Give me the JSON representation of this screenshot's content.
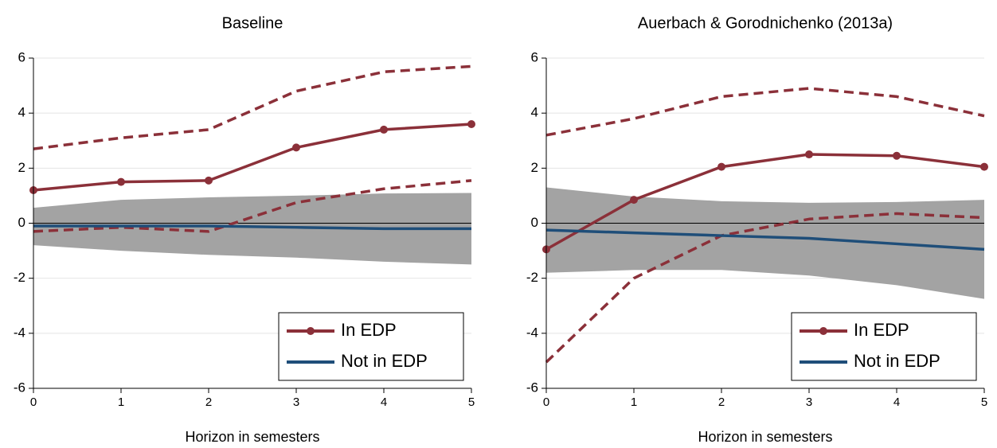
{
  "chart_data": [
    {
      "type": "line",
      "title": "Baseline",
      "xlabel": "Horizon in semesters",
      "x": [
        0,
        1,
        2,
        3,
        4,
        5
      ],
      "xlim": [
        0,
        5
      ],
      "xticks": [
        0,
        1,
        2,
        3,
        4,
        5
      ],
      "ylim": [
        -6,
        6
      ],
      "yticks": [
        -6,
        -4,
        -2,
        0,
        2,
        4,
        6
      ],
      "grid": true,
      "hline": 0,
      "legend": "lower right",
      "series": [
        {
          "name": "In EDP",
          "color": "#8b3039",
          "markers": true,
          "values": [
            1.2,
            1.5,
            1.55,
            2.75,
            3.4,
            3.6
          ],
          "upper": [
            2.7,
            3.1,
            3.4,
            4.8,
            5.5,
            5.7
          ],
          "lower": [
            -0.3,
            -0.15,
            -0.3,
            0.75,
            1.25,
            1.55
          ],
          "band_style": "dashed"
        },
        {
          "name": "Not in EDP",
          "color": "#1f4e79",
          "markers": false,
          "values": [
            -0.1,
            -0.1,
            -0.1,
            -0.15,
            -0.2,
            -0.2
          ],
          "upper": [
            0.56,
            0.85,
            0.94,
            1.0,
            1.08,
            1.1
          ],
          "lower": [
            -0.8,
            -1.0,
            -1.15,
            -1.25,
            -1.4,
            -1.5
          ],
          "band_style": "shaded",
          "band_color": "#a3a3a3"
        }
      ]
    },
    {
      "type": "line",
      "title": "Auerbach & Gorodnichenko (2013a)",
      "xlabel": "Horizon in semesters",
      "x": [
        0,
        1,
        2,
        3,
        4,
        5
      ],
      "xlim": [
        0,
        5
      ],
      "xticks": [
        0,
        1,
        2,
        3,
        4,
        5
      ],
      "ylim": [
        -6,
        6
      ],
      "yticks": [
        -6,
        -4,
        -2,
        0,
        2,
        4,
        6
      ],
      "grid": true,
      "hline": 0,
      "legend": "lower right",
      "series": [
        {
          "name": "In EDP",
          "color": "#8b3039",
          "markers": true,
          "values": [
            -0.95,
            0.85,
            2.05,
            2.5,
            2.45,
            2.05
          ],
          "upper": [
            3.2,
            3.8,
            4.6,
            4.9,
            4.6,
            3.9
          ],
          "lower": [
            -5.05,
            -2.0,
            -0.45,
            0.15,
            0.35,
            0.2
          ],
          "band_style": "dashed"
        },
        {
          "name": "Not in EDP",
          "color": "#1f4e79",
          "markers": false,
          "values": [
            -0.25,
            -0.35,
            -0.45,
            -0.55,
            -0.75,
            -0.95
          ],
          "upper": [
            1.3,
            0.97,
            0.8,
            0.74,
            0.77,
            0.85
          ],
          "lower": [
            -1.8,
            -1.7,
            -1.7,
            -1.9,
            -2.25,
            -2.75
          ],
          "band_style": "shaded",
          "band_color": "#a3a3a3"
        }
      ]
    }
  ]
}
